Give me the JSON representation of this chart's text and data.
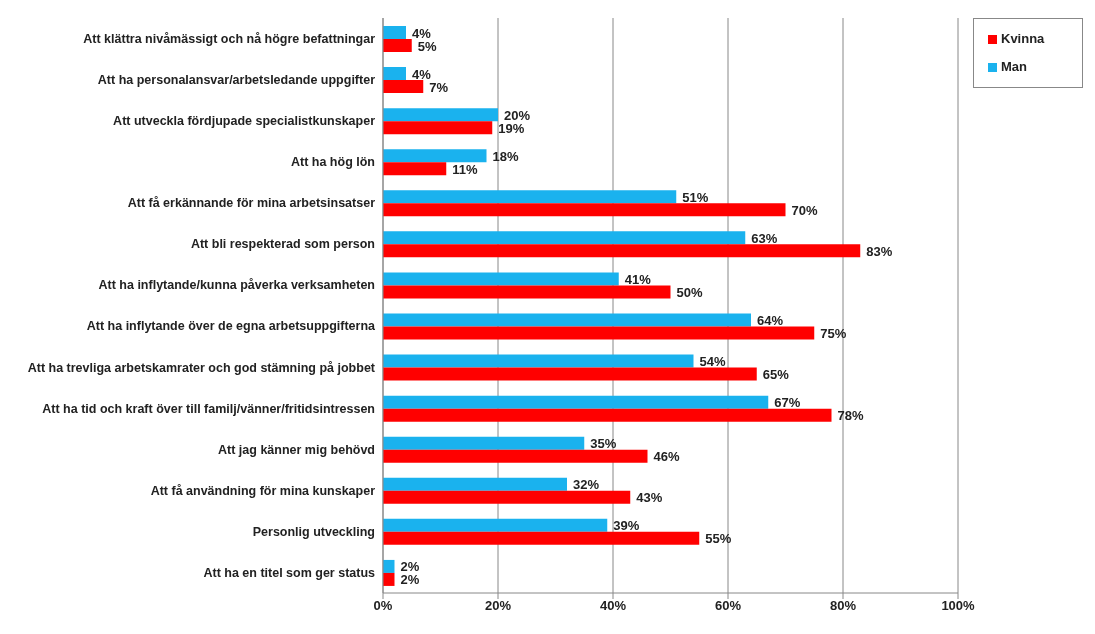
{
  "chart_data": {
    "type": "bar",
    "orientation": "horizontal",
    "categories": [
      "Att klättra nivåmässigt och nå högre befattningar",
      "Att ha personalansvar/arbetsledande  uppgifter",
      "Att utveckla fördjupade specialistkunskaper",
      "Att ha hög lön",
      "Att få erkännande för mina arbetsinsatser",
      "Att bli respekterad som person",
      "Att ha inflytande/kunna  påverka verksamheten",
      "Att ha inflytande över de egna arbetsuppgifterna",
      "Att ha trevliga arbetskamrater och god stämning på jobbet",
      "Att ha tid och kraft över till familj/vänner/fritidsintressen",
      "Att jag känner mig behövd",
      "Att få användning för mina kunskaper",
      "Personlig utveckling",
      "Att ha en titel som ger status"
    ],
    "series": [
      {
        "name": "Man",
        "color": "#1ab2ee",
        "values": [
          4,
          4,
          20,
          18,
          51,
          63,
          41,
          64,
          54,
          67,
          35,
          32,
          39,
          2
        ],
        "value_labels": [
          "4%",
          "4%",
          "20%",
          "18%",
          "51%",
          "63%",
          "41%",
          "64%",
          "54%",
          "67%",
          "35%",
          "32%",
          "39%",
          "2%"
        ]
      },
      {
        "name": "Kvinna",
        "color": "#ff0000",
        "values": [
          5,
          7,
          19,
          11,
          70,
          83,
          50,
          75,
          65,
          78,
          46,
          43,
          55,
          2
        ],
        "value_labels": [
          "5%",
          "7%",
          "19%",
          "11%",
          "70%",
          "83%",
          "50%",
          "75%",
          "65%",
          "78%",
          "46%",
          "43%",
          "55%",
          "2%"
        ]
      }
    ],
    "xlim": [
      0,
      100
    ],
    "xticks": [
      {
        "value": 0,
        "label": "0%"
      },
      {
        "value": 20,
        "label": "20%"
      },
      {
        "value": 40,
        "label": "40%"
      },
      {
        "value": 60,
        "label": "60%"
      },
      {
        "value": 80,
        "label": "80%"
      },
      {
        "value": 100,
        "label": "100%"
      }
    ],
    "grid": "x",
    "legend": "top right"
  }
}
